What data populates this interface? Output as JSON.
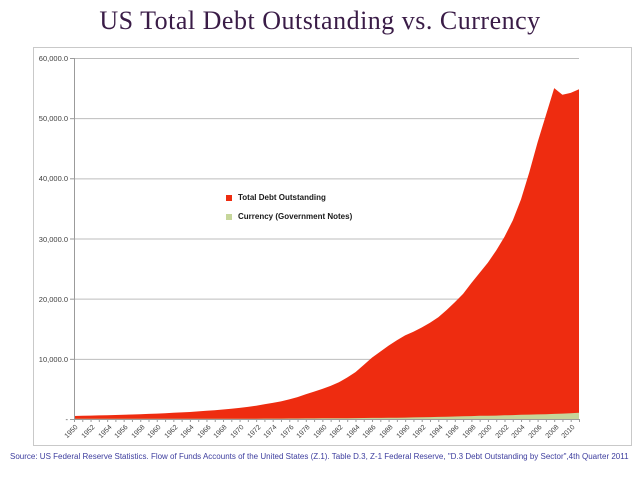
{
  "page": {
    "title": "US Total Debt Outstanding vs. Currency",
    "source_note": "Source: US Federal Reserve Statistics. Flow of Funds Accounts of the United States (Z.1). Table D.3, Z-1 Federal Reserve, \"D.3 Debt Outstanding by Sector\",4th Quarter 2011"
  },
  "colors": {
    "title_text": "#3a1c47",
    "source_text": "#3d3d9e",
    "debt_area": "#ee2c10",
    "currency_area": "#c6d69b",
    "gridline": "#bdbdbd",
    "axis": "#9b9b9b",
    "tick_label": "#3f3f3f"
  },
  "legend": {
    "items": [
      {
        "label": "Total Debt Outstanding",
        "color": "#ee2c10"
      },
      {
        "label": "Currency (Government Notes)",
        "color": "#c6d69b"
      }
    ]
  },
  "chart_data": {
    "type": "area",
    "title": "US Total Debt Outstanding vs. Currency",
    "x": [
      1950,
      1951,
      1952,
      1953,
      1954,
      1955,
      1956,
      1957,
      1958,
      1959,
      1960,
      1961,
      1962,
      1963,
      1964,
      1965,
      1966,
      1967,
      1968,
      1969,
      1970,
      1971,
      1972,
      1973,
      1974,
      1975,
      1976,
      1977,
      1978,
      1979,
      1980,
      1981,
      1982,
      1983,
      1984,
      1985,
      1986,
      1987,
      1988,
      1989,
      1990,
      1991,
      1992,
      1993,
      1994,
      1995,
      1996,
      1997,
      1998,
      1999,
      2000,
      2001,
      2002,
      2003,
      2004,
      2005,
      2006,
      2007,
      2008,
      2009,
      2010,
      2011
    ],
    "series": [
      {
        "name": "Total Debt Outstanding",
        "color": "#ee2c10",
        "values": [
          500,
          530,
          560,
          595,
          630,
          670,
          710,
          755,
          800,
          850,
          900,
          960,
          1025,
          1095,
          1170,
          1260,
          1355,
          1460,
          1580,
          1710,
          1850,
          2010,
          2210,
          2440,
          2670,
          2920,
          3250,
          3640,
          4100,
          4560,
          5000,
          5500,
          6100,
          6900,
          7800,
          9000,
          10200,
          11200,
          12200,
          13100,
          13900,
          14500,
          15200,
          16000,
          16900,
          18100,
          19400,
          20800,
          22600,
          24300,
          26000,
          28000,
          30300,
          33000,
          36500,
          41000,
          46000,
          50500,
          55000,
          53900,
          54200,
          54800
        ]
      },
      {
        "name": "Currency (Government Notes)",
        "color": "#c6d69b",
        "values": [
          27,
          28,
          29,
          30,
          30,
          31,
          32,
          32,
          33,
          33,
          34,
          34,
          35,
          36,
          37,
          38,
          40,
          41,
          43,
          46,
          50,
          53,
          57,
          61,
          66,
          72,
          78,
          85,
          93,
          101,
          110,
          118,
          126,
          138,
          148,
          160,
          175,
          190,
          205,
          222,
          240,
          260,
          285,
          315,
          350,
          380,
          410,
          445,
          490,
          555,
          540,
          570,
          610,
          650,
          690,
          730,
          760,
          790,
          850,
          900,
          950,
          1050
        ]
      }
    ],
    "ylim": [
      0,
      60000
    ],
    "ytick_step": 10000,
    "ytick_labels": [
      "-",
      "10,000.0",
      "20,000.0",
      "30,000.0",
      "40,000.0",
      "50,000.0",
      "60,000.0"
    ],
    "xtick_label_every": 2,
    "x_label_range": [
      1950,
      2010
    ],
    "grid": "horizontal",
    "legend_position": "center"
  }
}
